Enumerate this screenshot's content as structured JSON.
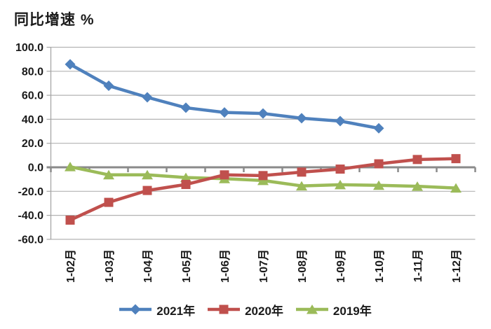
{
  "chart_data": {
    "type": "line",
    "title": "同比增速 %",
    "categories": [
      "1-02月",
      "1-03月",
      "1-04月",
      "1-05月",
      "1-06月",
      "1-07月",
      "1-08月",
      "1-09月",
      "1-10月",
      "1-11月",
      "1-12月"
    ],
    "y_ticks": [
      100,
      80,
      60,
      40,
      20,
      0,
      -20,
      -40,
      -60
    ],
    "y_tick_labels": [
      "100.0",
      "80.0",
      "60.0",
      "40.0",
      "20.0",
      "0.0",
      "-20.0",
      "-40.0",
      "-60.0"
    ],
    "ylim": [
      -60,
      100
    ],
    "grid": true,
    "legend_position": "bottom",
    "series": [
      {
        "name": "2021年",
        "color": "#4f81bd",
        "marker": "diamond",
        "values": [
          85.8,
          67.9,
          58.3,
          49.6,
          45.7,
          44.8,
          40.9,
          38.5,
          32.5,
          null,
          null
        ]
      },
      {
        "name": "2020年",
        "color": "#c0504d",
        "marker": "square",
        "values": [
          -44.0,
          -29.2,
          -19.3,
          -14.3,
          -6.3,
          -6.9,
          -4.0,
          -1.5,
          2.9,
          6.5,
          7.2
        ]
      },
      {
        "name": "2019年",
        "color": "#9bbb59",
        "marker": "triangle",
        "values": [
          0.5,
          -6.3,
          -6.3,
          -8.5,
          -9.5,
          -11.0,
          -15.5,
          -14.5,
          -15.0,
          -15.8,
          -17.3
        ]
      }
    ]
  },
  "style": {
    "background": "#ffffff",
    "text_color": "#1a1a1a",
    "gridline_color": "#b3b3b3",
    "axis_color": "#a6a6a6",
    "zero_axis_color": "#8a8a8a"
  }
}
